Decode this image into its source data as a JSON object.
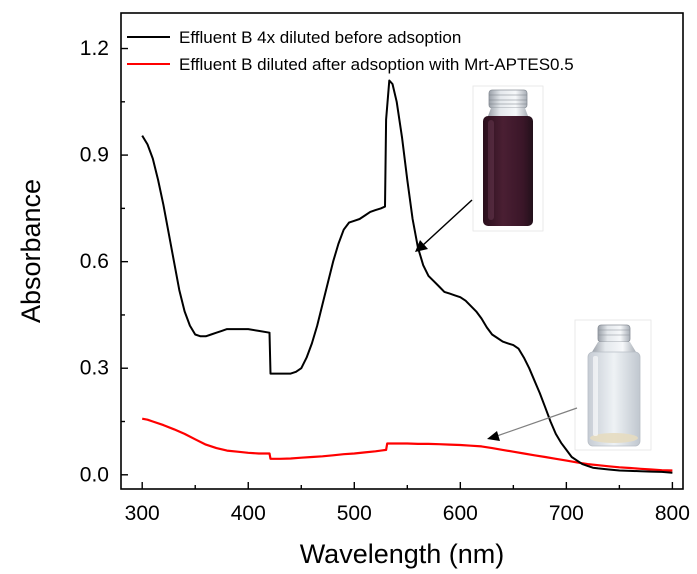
{
  "chart_data": {
    "type": "line",
    "xlabel": "Wavelength (nm)",
    "ylabel": "Absorbance",
    "xlim": [
      280,
      810
    ],
    "ylim": [
      -0.04,
      1.3
    ],
    "x_ticks": [
      "300",
      "400",
      "500",
      "600",
      "700",
      "800"
    ],
    "y_ticks": [
      "0.0",
      "0.3",
      "0.6",
      "0.9",
      "1.2"
    ],
    "legend_position": "top",
    "grid": false,
    "series": [
      {
        "name": "Effluent B 4x diluted before adsoption",
        "color": "#000000",
        "x": [
          300,
          305,
          310,
          315,
          320,
          325,
          330,
          335,
          340,
          345,
          350,
          355,
          360,
          365,
          370,
          375,
          380,
          390,
          400,
          410,
          420,
          421,
          425,
          430,
          435,
          440,
          445,
          450,
          455,
          460,
          465,
          470,
          475,
          480,
          485,
          490,
          495,
          500,
          505,
          510,
          515,
          520,
          525,
          529,
          530,
          533,
          536,
          540,
          545,
          550,
          555,
          560,
          565,
          570,
          575,
          580,
          585,
          590,
          595,
          600,
          605,
          610,
          615,
          620,
          625,
          630,
          635,
          640,
          645,
          650,
          655,
          660,
          665,
          670,
          675,
          680,
          685,
          690,
          695,
          700,
          705,
          710,
          715,
          720,
          725,
          730,
          740,
          750,
          760,
          770,
          780,
          790,
          800
        ],
        "y": [
          0.955,
          0.93,
          0.89,
          0.83,
          0.76,
          0.68,
          0.6,
          0.52,
          0.46,
          0.42,
          0.395,
          0.39,
          0.39,
          0.395,
          0.4,
          0.405,
          0.41,
          0.41,
          0.41,
          0.405,
          0.4,
          0.285,
          0.285,
          0.285,
          0.285,
          0.285,
          0.29,
          0.3,
          0.33,
          0.37,
          0.42,
          0.48,
          0.54,
          0.6,
          0.65,
          0.69,
          0.71,
          0.715,
          0.72,
          0.73,
          0.74,
          0.745,
          0.75,
          0.755,
          1.0,
          1.11,
          1.1,
          1.05,
          0.95,
          0.83,
          0.72,
          0.64,
          0.59,
          0.56,
          0.545,
          0.53,
          0.515,
          0.51,
          0.505,
          0.5,
          0.49,
          0.475,
          0.46,
          0.44,
          0.415,
          0.395,
          0.385,
          0.375,
          0.37,
          0.365,
          0.355,
          0.33,
          0.3,
          0.265,
          0.23,
          0.19,
          0.15,
          0.115,
          0.09,
          0.07,
          0.05,
          0.04,
          0.03,
          0.025,
          0.02,
          0.018,
          0.015,
          0.012,
          0.011,
          0.01,
          0.009,
          0.008,
          0.006
        ]
      },
      {
        "name": "Effluent B diluted after adsoption with Mrt-APTES0.5",
        "color": "#ff0000",
        "x": [
          300,
          305,
          310,
          320,
          330,
          340,
          350,
          360,
          370,
          380,
          390,
          400,
          410,
          420,
          421,
          430,
          440,
          450,
          460,
          470,
          480,
          490,
          500,
          510,
          520,
          530,
          531,
          540,
          550,
          560,
          570,
          580,
          590,
          600,
          610,
          620,
          630,
          640,
          650,
          660,
          670,
          680,
          690,
          700,
          710,
          720,
          730,
          740,
          750,
          760,
          770,
          780,
          790,
          800
        ],
        "y": [
          0.158,
          0.155,
          0.15,
          0.14,
          0.128,
          0.115,
          0.1,
          0.085,
          0.075,
          0.068,
          0.065,
          0.062,
          0.06,
          0.06,
          0.045,
          0.045,
          0.046,
          0.048,
          0.05,
          0.052,
          0.055,
          0.058,
          0.06,
          0.063,
          0.066,
          0.07,
          0.088,
          0.088,
          0.088,
          0.087,
          0.087,
          0.086,
          0.085,
          0.084,
          0.082,
          0.08,
          0.075,
          0.07,
          0.065,
          0.06,
          0.055,
          0.05,
          0.045,
          0.04,
          0.035,
          0.03,
          0.027,
          0.024,
          0.021,
          0.019,
          0.017,
          0.015,
          0.013,
          0.012
        ]
      }
    ]
  },
  "insets": {
    "vial_before": {
      "description": "purple-liquid-vial",
      "liquid_color": "#3f1a2a"
    },
    "vial_after": {
      "description": "clear-liquid-vial",
      "liquid_color": "#e8eef2"
    }
  },
  "colors": {
    "axis": "#000000",
    "before_line": "#000000",
    "after_line": "#ff0000"
  }
}
